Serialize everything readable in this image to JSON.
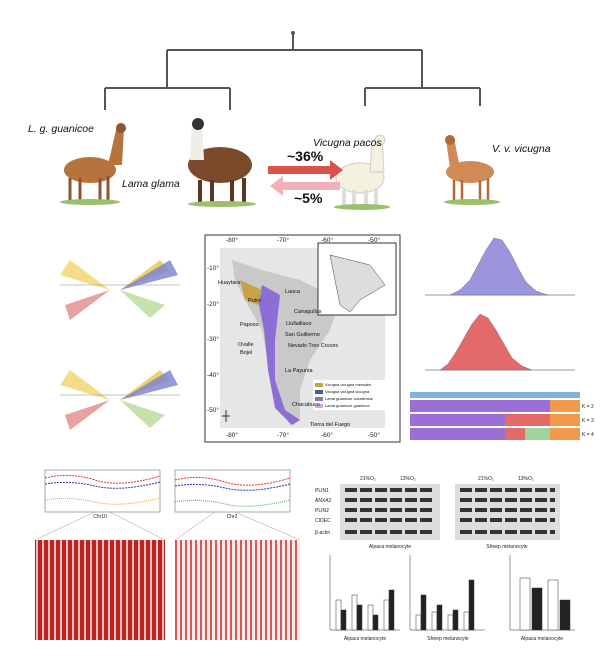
{
  "tree": {
    "labels": [
      "L. g. guanicoe",
      "Lama glama",
      "Vicugna pacos",
      "V. v. vicugna"
    ],
    "introgression": [
      "~36%",
      "~5%"
    ]
  },
  "map": {
    "lon_ticks": [
      "-80°",
      "-70°",
      "-60°",
      "-50°"
    ],
    "lat_ticks": [
      "-10°",
      "-20°",
      "-30°",
      "-40°",
      "-50°"
    ],
    "places": [
      "Huaytara",
      "Lauca",
      "Putre",
      "Canagullas",
      "Paposo",
      "Llullaillaco",
      "Ovalle",
      "Bojel",
      "San Guillermo",
      "Nevado Tres Cruces",
      "La Payunia",
      "Chacabuco",
      "Tierra del Fuego"
    ],
    "legend": [
      "Vicugna vicugna mensalis",
      "Vicugna vicugna vicugna",
      "Lama guanicoe cacsilensis",
      "Lama guanicoe guanicoe"
    ]
  },
  "structure": {
    "k_labels": [
      "K = 2",
      "K = 3",
      "K = 4"
    ]
  },
  "scans": {
    "chromosomes": [
      "Chr10",
      "Chr2"
    ]
  },
  "blots": {
    "proteins": [
      "PLIN1",
      "ANXA2",
      "PLIN2",
      "CIDEC",
      "β-actin"
    ],
    "conditions": [
      "21%O₂",
      "13%O₂"
    ],
    "captions": [
      "Alpaca melanocyte",
      "Sheep melanocyte"
    ]
  }
}
